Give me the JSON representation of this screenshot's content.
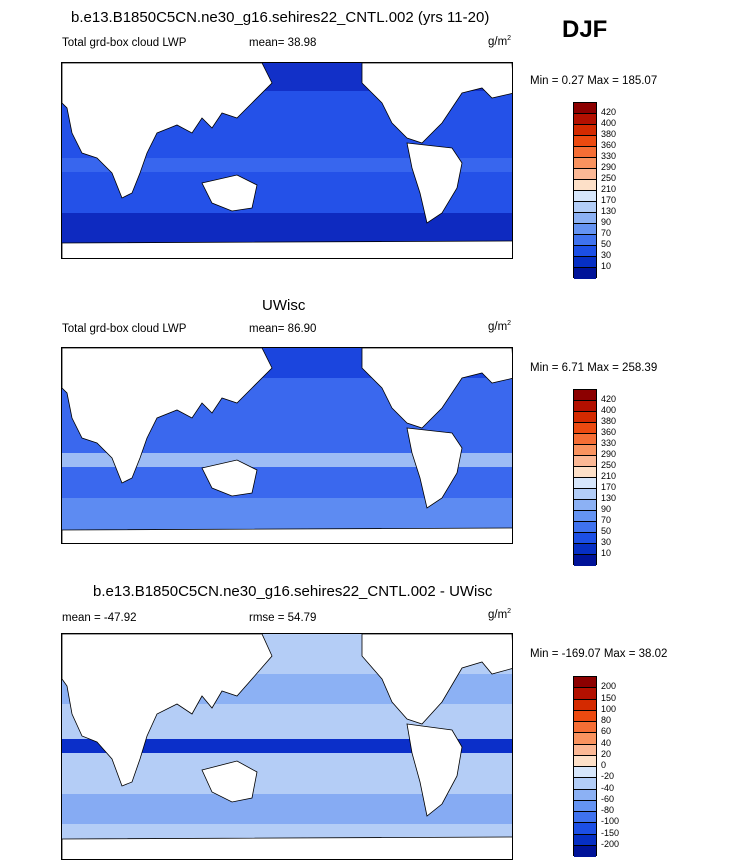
{
  "djf_label": "DJF",
  "unit_label": "g/m",
  "unit_sup": "2",
  "panels": [
    {
      "title": "b.e13.B1850C5CN.ne30_g16.sehires22_CNTL.002 (yrs 11-20)",
      "left_label": "Total grd-box cloud LWP",
      "stat_label": "mean=  38.98",
      "minmax": "Min =    0.27 Max = 185.07",
      "map_base_color": "#1a3fd6",
      "colorbar_labels": [
        "420",
        "400",
        "380",
        "360",
        "330",
        "290",
        "250",
        "210",
        "170",
        "130",
        "90",
        "70",
        "50",
        "30",
        "10"
      ]
    },
    {
      "title": "UWisc",
      "left_label": "Total grd-box cloud LWP",
      "stat_label": "mean=  86.90",
      "minmax": "Min =   6.71 Max = 258.39",
      "map_base_color": "#2b5cf0",
      "colorbar_labels": [
        "420",
        "400",
        "380",
        "360",
        "330",
        "290",
        "250",
        "210",
        "170",
        "130",
        "90",
        "70",
        "50",
        "30",
        "10"
      ]
    },
    {
      "title": "b.e13.B1850C5CN.ne30_g16.sehires22_CNTL.002 - UWisc",
      "left_label": "mean = -47.92",
      "stat_label": "rmse =  54.79",
      "minmax": "Min = -169.07 Max =  38.02",
      "map_base_color": "#5d8cf2",
      "colorbar_labels": [
        "200",
        "150",
        "100",
        "80",
        "60",
        "40",
        "20",
        "0",
        "-20",
        "-40",
        "-60",
        "-80",
        "-100",
        "-150",
        "-200"
      ]
    }
  ],
  "colorbar_colors_abs": [
    "#8c0000",
    "#b31000",
    "#d42a00",
    "#ec4a10",
    "#f56e35",
    "#f9935f",
    "#fbb895",
    "#fde0c8",
    "#d6e6fb",
    "#b2cdf7",
    "#8cb1f4",
    "#6493f2",
    "#3f72ee",
    "#1c4fe5",
    "#062fc4",
    "#001399"
  ],
  "colorbar_colors_diff": [
    "#8c0000",
    "#b31000",
    "#d42a00",
    "#ec4a10",
    "#f56e35",
    "#f9935f",
    "#fbb895",
    "#fde0c8",
    "#ffffff",
    "#d6e6fb",
    "#b2cdf7",
    "#8cb1f4",
    "#6493f2",
    "#3f72ee",
    "#1c4fe5",
    "#062fc4",
    "#001399"
  ]
}
